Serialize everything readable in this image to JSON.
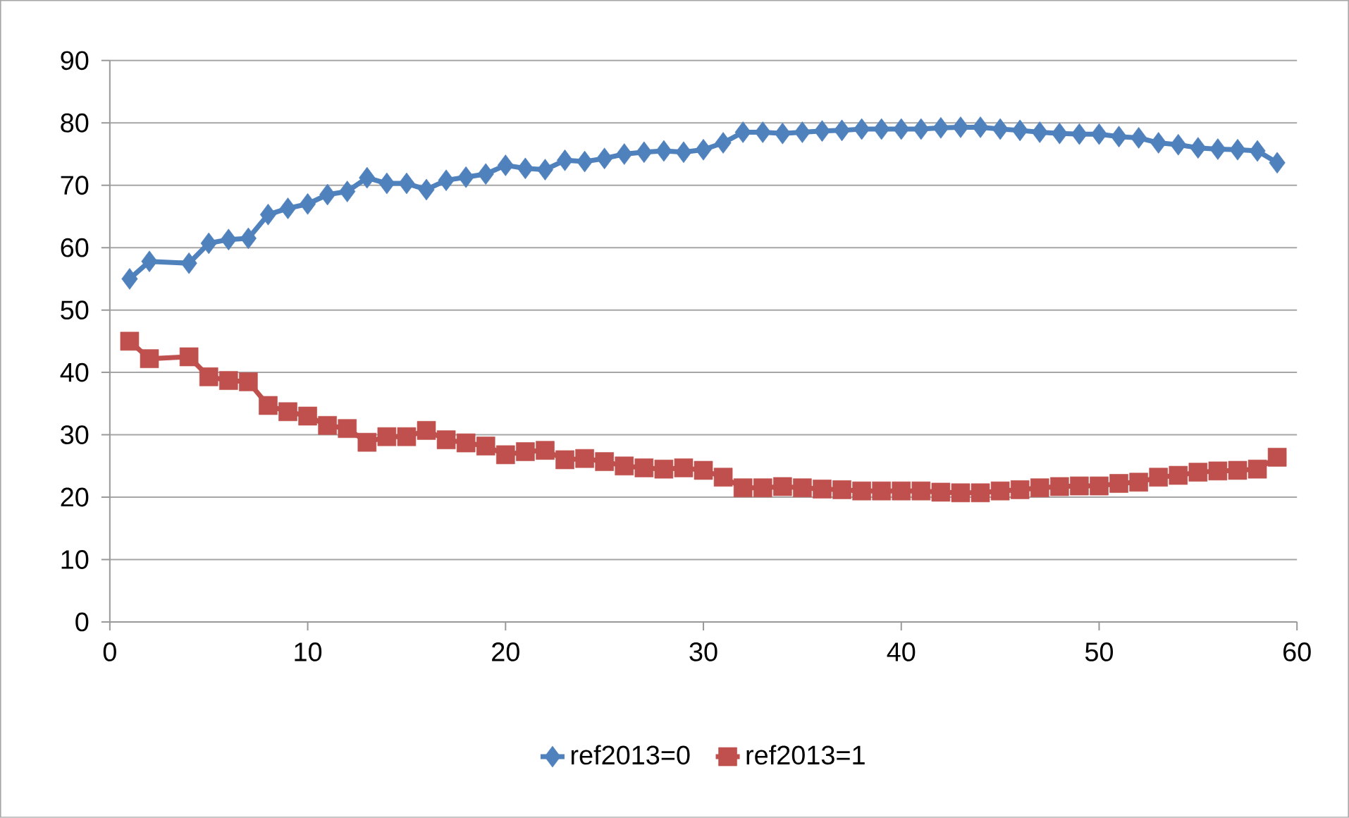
{
  "chart_data": {
    "type": "line",
    "x": [
      1,
      2,
      4,
      5,
      6,
      7,
      8,
      9,
      10,
      11,
      12,
      13,
      14,
      15,
      16,
      17,
      18,
      19,
      20,
      21,
      22,
      23,
      24,
      25,
      26,
      27,
      28,
      29,
      30,
      31,
      32,
      33,
      34,
      35,
      36,
      37,
      38,
      39,
      40,
      41,
      42,
      43,
      44,
      45,
      46,
      47,
      48,
      49,
      50,
      51,
      52,
      53,
      54,
      55,
      56,
      57,
      58,
      59
    ],
    "series": [
      {
        "name": "ref2013=0",
        "color": "#4f81bd",
        "marker": "diamond",
        "values": [
          55,
          57.8,
          57.5,
          60.7,
          61.3,
          61.5,
          65.3,
          66.3,
          67,
          68.5,
          69,
          71.2,
          70.3,
          70.3,
          69.3,
          70.8,
          71.3,
          71.8,
          73.2,
          72.7,
          72.5,
          74,
          73.8,
          74.3,
          75,
          75.3,
          75.5,
          75.3,
          75.7,
          76.8,
          78.5,
          78.5,
          78.3,
          78.5,
          78.7,
          78.8,
          79,
          79,
          79,
          79,
          79.2,
          79.3,
          79.3,
          79,
          78.8,
          78.5,
          78.3,
          78.2,
          78.2,
          77.8,
          77.6,
          76.8,
          76.5,
          76,
          75.8,
          75.7,
          75.5,
          73.6
        ]
      },
      {
        "name": "ref2013=1",
        "color": "#c0504d",
        "marker": "square",
        "values": [
          45,
          42.2,
          42.5,
          39.3,
          38.7,
          38.5,
          34.7,
          33.7,
          33,
          31.5,
          31,
          28.8,
          29.7,
          29.7,
          30.7,
          29.2,
          28.7,
          28.2,
          26.8,
          27.3,
          27.5,
          26,
          26.2,
          25.7,
          25,
          24.7,
          24.5,
          24.7,
          24.3,
          23.2,
          21.5,
          21.5,
          21.7,
          21.5,
          21.3,
          21.2,
          21,
          21,
          21,
          21,
          20.8,
          20.7,
          20.7,
          21,
          21.2,
          21.5,
          21.7,
          21.8,
          21.8,
          22.2,
          22.4,
          23.2,
          23.5,
          24,
          24.2,
          24.3,
          24.5,
          26.4
        ]
      }
    ],
    "xlim": [
      0,
      60
    ],
    "xticks": [
      0,
      10,
      20,
      30,
      40,
      50,
      60
    ],
    "ylim": [
      0,
      90
    ],
    "yticks": [
      0,
      10,
      20,
      30,
      40,
      50,
      60,
      70,
      80,
      90
    ],
    "grid": "y",
    "legend": "bottom",
    "line_style": "solid"
  }
}
